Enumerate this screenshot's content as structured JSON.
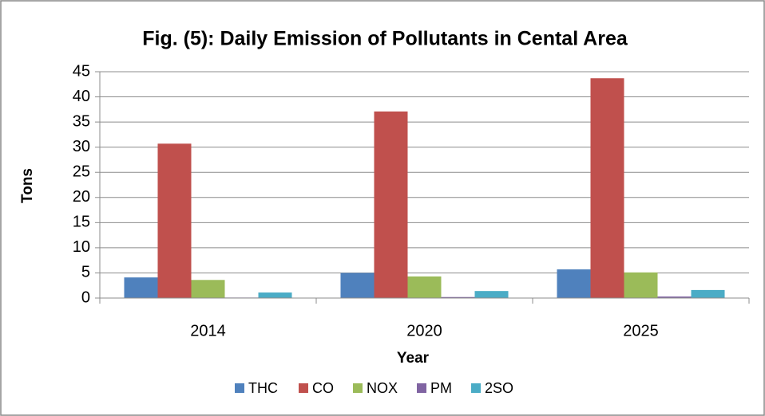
{
  "chart_data": {
    "type": "bar",
    "title": "Fig. (5): Daily Emission of Pollutants in Cental Area",
    "x_label": "Year",
    "y_label": "Tons",
    "categories": [
      "2014",
      "2020",
      "2025"
    ],
    "series": [
      {
        "name": "THC",
        "color": "#4f81bd",
        "values": [
          4.1,
          5.0,
          5.7
        ]
      },
      {
        "name": "CO",
        "color": "#c0504d",
        "values": [
          30.7,
          37.1,
          43.7
        ]
      },
      {
        "name": "NOX",
        "color": "#9bbb59",
        "values": [
          3.6,
          4.3,
          5.1
        ]
      },
      {
        "name": "PM",
        "color": "#8064a2",
        "values": [
          0.1,
          0.2,
          0.3
        ]
      },
      {
        "name": "2SO",
        "color": "#4bacc6",
        "values": [
          1.1,
          1.4,
          1.6
        ]
      }
    ],
    "ylim": [
      0,
      45
    ],
    "yticks": [
      0,
      5,
      10,
      15,
      20,
      25,
      30,
      35,
      40,
      45
    ],
    "grid": true,
    "legend": "bottom"
  }
}
